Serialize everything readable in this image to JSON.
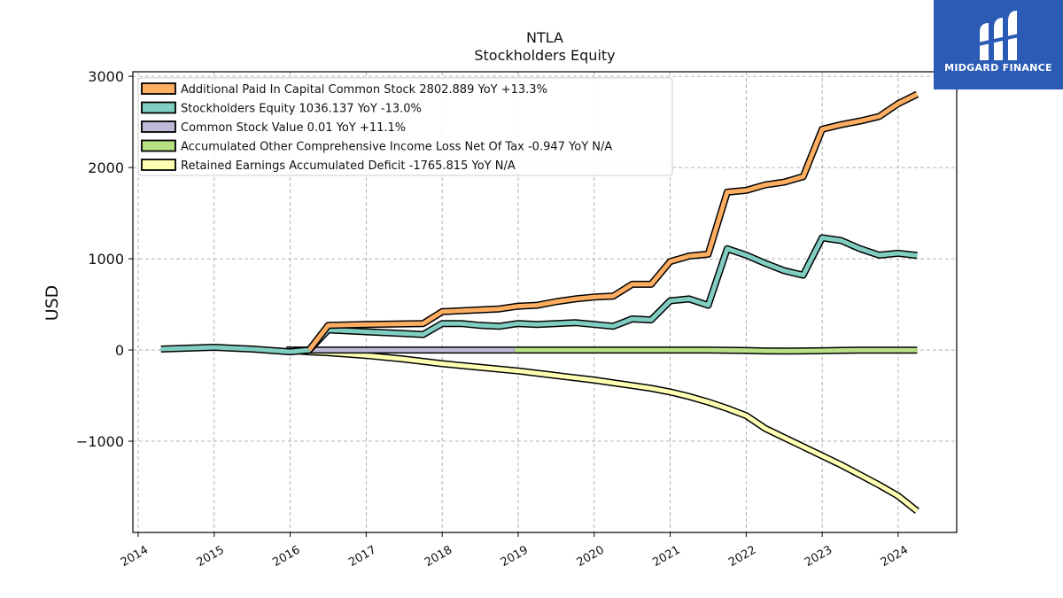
{
  "logo": {
    "brand": "MIDGARD FINANCE"
  },
  "chart_data": {
    "type": "line",
    "title": "NTLA",
    "subtitle": "Stockholders  Equity",
    "ylabel": "USD",
    "xlabel": "",
    "xlim": [
      2013.93,
      2024.77
    ],
    "ylim": [
      -2000,
      3050
    ],
    "yticks": [
      3000,
      2000,
      1000,
      0,
      -1000
    ],
    "ytick_labels": [
      "3000",
      "2000",
      "1000",
      "0",
      "−1000"
    ],
    "xticks": [
      2014,
      2015,
      2016,
      2017,
      2018,
      2019,
      2020,
      2021,
      2022,
      2023,
      2024
    ],
    "xtick_labels": [
      "2014",
      "2015",
      "2016",
      "2017",
      "2018",
      "2019",
      "2020",
      "2021",
      "2022",
      "2023",
      "2024"
    ],
    "grid": true,
    "legend_position": "top-left",
    "series": [
      {
        "name": "Additional Paid In Capital Common Stock  2802.889 YoY +13.3%",
        "color": "#fdae61",
        "x": [
          2016.25,
          2016.5,
          2017.0,
          2017.75,
          2018.0,
          2018.5,
          2018.75,
          2019.0,
          2019.25,
          2019.5,
          2019.75,
          2020.0,
          2020.25,
          2020.5,
          2020.75,
          2021.0,
          2021.25,
          2021.5,
          2021.75,
          2022.0,
          2022.25,
          2022.5,
          2022.75,
          2023.0,
          2023.25,
          2023.5,
          2023.75,
          2024.0,
          2024.25
        ],
        "y": [
          0,
          270,
          280,
          290,
          420,
          440,
          450,
          480,
          490,
          530,
          560,
          580,
          590,
          720,
          720,
          970,
          1030,
          1050,
          1730,
          1750,
          1810,
          1840,
          1900,
          2420,
          2470,
          2510,
          2560,
          2700,
          2803
        ]
      },
      {
        "name": "Stockholders Equity  1036.137 YoY -13.0%",
        "color": "#80cdc1",
        "x": [
          2014.3,
          2015.0,
          2015.5,
          2016.0,
          2016.25,
          2016.5,
          2017.0,
          2017.5,
          2017.75,
          2018.0,
          2018.25,
          2018.5,
          2018.75,
          2019.0,
          2019.25,
          2019.5,
          2019.75,
          2020.0,
          2020.25,
          2020.5,
          2020.75,
          2021.0,
          2021.25,
          2021.5,
          2021.75,
          2022.0,
          2022.25,
          2022.5,
          2022.75,
          2023.0,
          2023.25,
          2023.5,
          2023.75,
          2024.0,
          2024.25
        ],
        "y": [
          10,
          30,
          10,
          -20,
          0,
          220,
          200,
          180,
          170,
          290,
          290,
          270,
          260,
          290,
          280,
          290,
          300,
          280,
          260,
          340,
          330,
          540,
          560,
          490,
          1110,
          1040,
          950,
          870,
          820,
          1230,
          1200,
          1110,
          1040,
          1060,
          1036
        ]
      },
      {
        "name": "Common Stock Value  0.01 YoY +11.1%",
        "color": "#bebada",
        "x": [
          2015.95,
          2016.25,
          2016.5,
          2017.0,
          2017.5,
          2018.0,
          2018.5,
          2018.95
        ],
        "y": [
          0.01,
          0.01,
          0.01,
          0.01,
          0.01,
          0.01,
          0.01,
          0.01
        ]
      },
      {
        "name": "Accumulated Other Comprehensive Income Loss Net Of Tax  -0.947 YoY N/A",
        "color": "#b8e186",
        "x": [
          2018.95,
          2019.5,
          2020.0,
          2020.5,
          2021.0,
          2021.5,
          2022.0,
          2022.25,
          2022.5,
          2022.75,
          2023.0,
          2023.25,
          2023.5,
          2023.75,
          2024.0,
          2024.25
        ],
        "y": [
          0,
          0,
          0,
          0,
          0,
          0,
          -5,
          -10,
          -12,
          -10,
          -8,
          -4,
          -2,
          -1,
          -1,
          -0.947
        ]
      },
      {
        "name": "Retained Earnings Accumulated Deficit  -1765.815 YoY N/A",
        "color": "#ffffb3",
        "x": [
          2015.95,
          2016.25,
          2016.5,
          2017.0,
          2017.5,
          2018.0,
          2018.5,
          2019.0,
          2019.5,
          2020.0,
          2020.5,
          2020.75,
          2021.0,
          2021.25,
          2021.5,
          2021.75,
          2022.0,
          2022.25,
          2022.5,
          2022.75,
          2023.0,
          2023.25,
          2023.5,
          2023.75,
          2024.0,
          2024.25
        ],
        "y": [
          0,
          -20,
          -30,
          -60,
          -100,
          -150,
          -190,
          -230,
          -280,
          -330,
          -390,
          -420,
          -460,
          -510,
          -570,
          -640,
          -720,
          -860,
          -960,
          -1060,
          -1160,
          -1260,
          -1370,
          -1480,
          -1600,
          -1766
        ]
      }
    ]
  }
}
